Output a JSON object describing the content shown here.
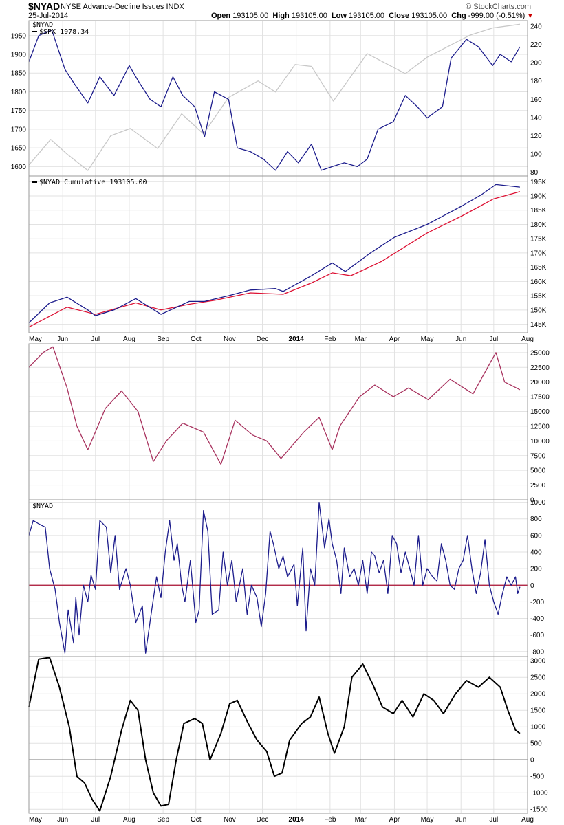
{
  "header": {
    "symbol": "$NYAD",
    "name": "NYSE Advance-Decline Issues  INDX",
    "date": "25-Jul-2014",
    "brand": "© StockCharts.com",
    "open_label": "Open",
    "open": "193105.00",
    "high_label": "High",
    "high": "193105.00",
    "low_label": "Low",
    "low": "193105.00",
    "close_label": "Close",
    "close": "193105.00",
    "chg_label": "Chg",
    "chg": "-999.00 (-0.51%)"
  },
  "colors": {
    "nyad": "#1c1c8c",
    "spx": "#c8c8c8",
    "ma": "#dd1133",
    "breadth": "#a8325e",
    "osc": "#000000",
    "zero": "#aa1133",
    "grid": "#e2e2e2"
  },
  "x_axis": {
    "months": [
      "May",
      "Jun",
      "Jul",
      "Aug",
      "Sep",
      "Oct",
      "Nov",
      "Dec",
      "2014",
      "Feb",
      "Mar",
      "Apr",
      "May",
      "Jun",
      "Jul",
      "Aug"
    ],
    "start": "2013-05-01",
    "end": "2014-08-01"
  },
  "chart_data": [
    {
      "type": "line",
      "panel": "price",
      "legend": [
        "$NYAD",
        "$SPX 1978.34"
      ],
      "left_axis": {
        "ticks": [
          1600,
          1650,
          1700,
          1750,
          1800,
          1850,
          1900,
          1950
        ],
        "ylim": [
          1575,
          1990
        ]
      },
      "right_axis": {
        "ticks": [
          80,
          100,
          120,
          140,
          160,
          180,
          200,
          220,
          240
        ],
        "ylim": [
          76,
          246
        ]
      },
      "series": [
        {
          "name": "$NYAD",
          "axis": "left",
          "color": "#1c1c8c",
          "x": [
            "2013-05-01",
            "2013-05-10",
            "2013-05-22",
            "2013-06-03",
            "2013-06-12",
            "2013-06-24",
            "2013-07-05",
            "2013-07-18",
            "2013-08-01",
            "2013-08-09",
            "2013-08-20",
            "2013-08-30",
            "2013-09-10",
            "2013-09-19",
            "2013-09-30",
            "2013-10-09",
            "2013-10-18",
            "2013-10-31",
            "2013-11-08",
            "2013-11-20",
            "2013-12-02",
            "2013-12-13",
            "2013-12-24",
            "2014-01-03",
            "2014-01-15",
            "2014-01-24",
            "2014-02-03",
            "2014-02-14",
            "2014-02-26",
            "2014-03-07",
            "2014-03-17",
            "2014-03-31",
            "2014-04-11",
            "2014-04-22",
            "2014-05-01",
            "2014-05-15",
            "2014-05-23",
            "2014-06-06",
            "2014-06-17",
            "2014-06-30",
            "2014-07-07",
            "2014-07-17",
            "2014-07-25"
          ],
          "values": [
            1880,
            1950,
            1965,
            1860,
            1820,
            1770,
            1840,
            1790,
            1870,
            1830,
            1780,
            1760,
            1840,
            1790,
            1760,
            1680,
            1800,
            1780,
            1650,
            1640,
            1620,
            1590,
            1640,
            1610,
            1660,
            1590,
            1600,
            1610,
            1600,
            1620,
            1700,
            1720,
            1790,
            1760,
            1730,
            1760,
            1890,
            1940,
            1920,
            1870,
            1900,
            1880,
            1920
          ]
        },
        {
          "name": "$SPX",
          "axis": "right",
          "color": "#c8c8c8",
          "x": [
            "2013-05-01",
            "2013-05-21",
            "2013-06-05",
            "2013-06-24",
            "2013-07-15",
            "2013-08-02",
            "2013-08-27",
            "2013-09-18",
            "2013-10-08",
            "2013-10-31",
            "2013-11-27",
            "2013-12-13",
            "2013-12-31",
            "2014-01-15",
            "2014-02-04",
            "2014-03-07",
            "2014-04-11",
            "2014-05-01",
            "2014-06-09",
            "2014-06-30",
            "2014-07-25"
          ],
          "values": [
            88,
            116,
            100,
            82,
            120,
            128,
            106,
            144,
            122,
            162,
            180,
            168,
            198,
            196,
            158,
            210,
            188,
            206,
            230,
            238,
            242
          ]
        }
      ]
    },
    {
      "type": "line",
      "panel": "cumulative",
      "legend": [
        "$NYAD Cumulative 193105.00"
      ],
      "ylim": [
        142000,
        197000
      ],
      "right_axis": {
        "ticks": [
          "145K",
          "150K",
          "155K",
          "160K",
          "165K",
          "170K",
          "175K",
          "180K",
          "185K",
          "190K",
          "195K"
        ],
        "values": [
          145000,
          150000,
          155000,
          160000,
          165000,
          170000,
          175000,
          180000,
          185000,
          190000,
          195000
        ]
      },
      "series": [
        {
          "name": "$NYAD Cumulative",
          "color": "#1c1c8c",
          "x": [
            "2013-05-01",
            "2013-05-20",
            "2013-06-05",
            "2013-06-24",
            "2013-07-01",
            "2013-07-18",
            "2013-08-07",
            "2013-08-30",
            "2013-09-25",
            "2013-10-09",
            "2013-10-31",
            "2013-11-20",
            "2013-12-13",
            "2013-12-20",
            "2014-01-15",
            "2014-02-03",
            "2014-02-15",
            "2014-03-10",
            "2014-04-01",
            "2014-05-01",
            "2014-06-02",
            "2014-06-20",
            "2014-07-03",
            "2014-07-25"
          ],
          "values": [
            145500,
            152500,
            154500,
            150000,
            148000,
            150000,
            154000,
            148500,
            153000,
            153000,
            155000,
            157000,
            157500,
            156500,
            162000,
            166500,
            163500,
            170000,
            175500,
            180000,
            186500,
            190500,
            194000,
            193105
          ]
        },
        {
          "name": "Moving average",
          "color": "#dd1133",
          "x": [
            "2013-05-01",
            "2013-06-05",
            "2013-07-01",
            "2013-08-07",
            "2013-08-30",
            "2013-09-25",
            "2013-10-20",
            "2013-11-20",
            "2013-12-20",
            "2014-01-15",
            "2014-02-03",
            "2014-02-20",
            "2014-03-20",
            "2014-04-10",
            "2014-05-01",
            "2014-06-02",
            "2014-07-01",
            "2014-07-25"
          ],
          "values": [
            144000,
            151000,
            148500,
            152500,
            150000,
            152000,
            153500,
            156000,
            155500,
            159500,
            163000,
            162000,
            167000,
            172000,
            177000,
            183000,
            189000,
            191500
          ]
        }
      ]
    },
    {
      "type": "line",
      "panel": "breadth",
      "ylim": [
        0,
        26500
      ],
      "ticks": [
        0,
        2500,
        5000,
        7500,
        10000,
        12500,
        15000,
        17500,
        20000,
        22500,
        25000
      ],
      "series": [
        {
          "name": "",
          "color": "#a8325e",
          "x": [
            "2013-05-01",
            "2013-05-14",
            "2013-05-23",
            "2013-06-05",
            "2013-06-14",
            "2013-06-24",
            "2013-07-10",
            "2013-07-25",
            "2013-08-09",
            "2013-08-23",
            "2013-09-04",
            "2013-09-19",
            "2013-10-08",
            "2013-10-24",
            "2013-11-06",
            "2013-11-22",
            "2013-12-05",
            "2013-12-18",
            "2014-01-08",
            "2014-01-22",
            "2014-02-03",
            "2014-02-10",
            "2014-02-28",
            "2014-03-14",
            "2014-03-31",
            "2014-04-14",
            "2014-05-02",
            "2014-05-22",
            "2014-06-12",
            "2014-06-24",
            "2014-07-03",
            "2014-07-11",
            "2014-07-25"
          ],
          "values": [
            22500,
            25000,
            26000,
            19000,
            12500,
            8500,
            15500,
            18500,
            15000,
            6500,
            10000,
            13000,
            11500,
            6000,
            13500,
            11000,
            10000,
            7000,
            11500,
            14000,
            8500,
            12500,
            17500,
            19500,
            17500,
            19000,
            17000,
            20500,
            18000,
            22000,
            25000,
            20000,
            18700
          ]
        }
      ]
    },
    {
      "type": "line",
      "panel": "oscillator",
      "legend": [
        "$NYAD"
      ],
      "ylim": [
        -860,
        1030
      ],
      "ticks": [
        -800,
        -600,
        -400,
        -200,
        0,
        200,
        400,
        600,
        800,
        1000
      ],
      "series": [
        {
          "name": "$NYAD",
          "color": "#1c1c8c",
          "x": [
            "2013-05-01",
            "2013-05-05",
            "2013-05-10",
            "2013-05-16",
            "2013-05-20",
            "2013-05-25",
            "2013-05-29",
            "2013-06-03",
            "2013-06-06",
            "2013-06-11",
            "2013-06-13",
            "2013-06-16",
            "2013-06-20",
            "2013-06-24",
            "2013-06-27",
            "2013-07-01",
            "2013-07-05",
            "2013-07-11",
            "2013-07-15",
            "2013-07-19",
            "2013-07-23",
            "2013-07-29",
            "2013-08-02",
            "2013-08-07",
            "2013-08-13",
            "2013-08-16",
            "2013-08-21",
            "2013-08-26",
            "2013-08-30",
            "2013-09-03",
            "2013-09-07",
            "2013-09-11",
            "2013-09-14",
            "2013-09-18",
            "2013-09-21",
            "2013-09-26",
            "2013-10-01",
            "2013-10-04",
            "2013-10-08",
            "2013-10-12",
            "2013-10-16",
            "2013-10-22",
            "2013-10-26",
            "2013-10-30",
            "2013-11-03",
            "2013-11-07",
            "2013-11-13",
            "2013-11-17",
            "2013-11-21",
            "2013-11-26",
            "2013-11-30",
            "2013-12-04",
            "2013-12-08",
            "2013-12-11",
            "2013-12-16",
            "2013-12-20",
            "2013-12-24",
            "2013-12-30",
            "2014-01-02",
            "2014-01-07",
            "2014-01-10",
            "2014-01-14",
            "2014-01-18",
            "2014-01-22",
            "2014-01-27",
            "2014-01-31",
            "2014-02-03",
            "2014-02-07",
            "2014-02-11",
            "2014-02-14",
            "2014-02-19",
            "2014-02-23",
            "2014-02-27",
            "2014-03-03",
            "2014-03-07",
            "2014-03-11",
            "2014-03-14",
            "2014-03-18",
            "2014-03-22",
            "2014-03-26",
            "2014-03-30",
            "2014-04-03",
            "2014-04-07",
            "2014-04-11",
            "2014-04-15",
            "2014-04-19",
            "2014-04-23",
            "2014-04-27",
            "2014-05-01",
            "2014-05-06",
            "2014-05-10",
            "2014-05-14",
            "2014-05-18",
            "2014-05-22",
            "2014-05-26",
            "2014-05-30",
            "2014-06-03",
            "2014-06-07",
            "2014-06-11",
            "2014-06-15",
            "2014-06-19",
            "2014-06-23",
            "2014-06-27",
            "2014-07-01",
            "2014-07-05",
            "2014-07-09",
            "2014-07-13",
            "2014-07-17",
            "2014-07-21",
            "2014-07-23",
            "2014-07-25"
          ],
          "values": [
            600,
            780,
            740,
            700,
            200,
            -50,
            -450,
            -820,
            -300,
            -700,
            -150,
            -600,
            0,
            -200,
            120,
            -50,
            780,
            700,
            150,
            600,
            -50,
            200,
            0,
            -450,
            -250,
            -820,
            -350,
            100,
            -150,
            400,
            780,
            300,
            500,
            0,
            -200,
            300,
            -450,
            -300,
            900,
            650,
            -350,
            -300,
            400,
            0,
            300,
            -200,
            200,
            -350,
            0,
            -150,
            -500,
            -100,
            650,
            500,
            200,
            350,
            100,
            250,
            -250,
            450,
            -550,
            200,
            0,
            1000,
            450,
            800,
            500,
            300,
            -100,
            450,
            100,
            200,
            0,
            300,
            -100,
            400,
            350,
            150,
            300,
            -100,
            600,
            500,
            150,
            400,
            200,
            0,
            600,
            0,
            200,
            100,
            50,
            500,
            300,
            0,
            -50,
            200,
            300,
            600,
            200,
            -100,
            150,
            550,
            0,
            -200,
            -350,
            -100,
            100,
            0,
            100,
            -100,
            -20
          ]
        }
      ]
    },
    {
      "type": "line",
      "panel": "oscillator-smoothed",
      "ylim": [
        -1620,
        3130
      ],
      "ticks": [
        -1500,
        -1000,
        -500,
        0,
        500,
        1000,
        1500,
        2000,
        2500,
        3000
      ],
      "series": [
        {
          "name": "",
          "color": "#000000",
          "x": [
            "2013-05-01",
            "2013-05-10",
            "2013-05-20",
            "2013-05-29",
            "2013-06-07",
            "2013-06-14",
            "2013-06-21",
            "2013-06-28",
            "2013-07-05",
            "2013-07-15",
            "2013-07-25",
            "2013-08-02",
            "2013-08-09",
            "2013-08-16",
            "2013-08-23",
            "2013-08-30",
            "2013-09-06",
            "2013-09-13",
            "2013-09-20",
            "2013-09-30",
            "2013-10-07",
            "2013-10-14",
            "2013-10-24",
            "2013-11-01",
            "2013-11-08",
            "2013-11-18",
            "2013-11-26",
            "2013-12-05",
            "2013-12-12",
            "2013-12-19",
            "2013-12-26",
            "2014-01-06",
            "2014-01-14",
            "2014-01-22",
            "2014-01-30",
            "2014-02-05",
            "2014-02-14",
            "2014-02-21",
            "2014-03-03",
            "2014-03-12",
            "2014-03-21",
            "2014-03-31",
            "2014-04-08",
            "2014-04-18",
            "2014-04-28",
            "2014-05-07",
            "2014-05-16",
            "2014-05-27",
            "2014-06-06",
            "2014-06-17",
            "2014-06-27",
            "2014-07-07",
            "2014-07-14",
            "2014-07-21",
            "2014-07-25"
          ],
          "values": [
            1600,
            3050,
            3100,
            2200,
            1000,
            -500,
            -700,
            -1200,
            -1550,
            -500,
            900,
            1800,
            1500,
            0,
            -1000,
            -1400,
            -1350,
            0,
            1100,
            1250,
            1100,
            0,
            800,
            1700,
            1800,
            1100,
            600,
            250,
            -500,
            -400,
            600,
            1100,
            1300,
            1900,
            800,
            200,
            1000,
            2500,
            2900,
            2300,
            1600,
            1400,
            1800,
            1300,
            2000,
            1800,
            1400,
            2000,
            2400,
            2200,
            2500,
            2200,
            1500,
            900,
            800
          ]
        }
      ]
    }
  ]
}
